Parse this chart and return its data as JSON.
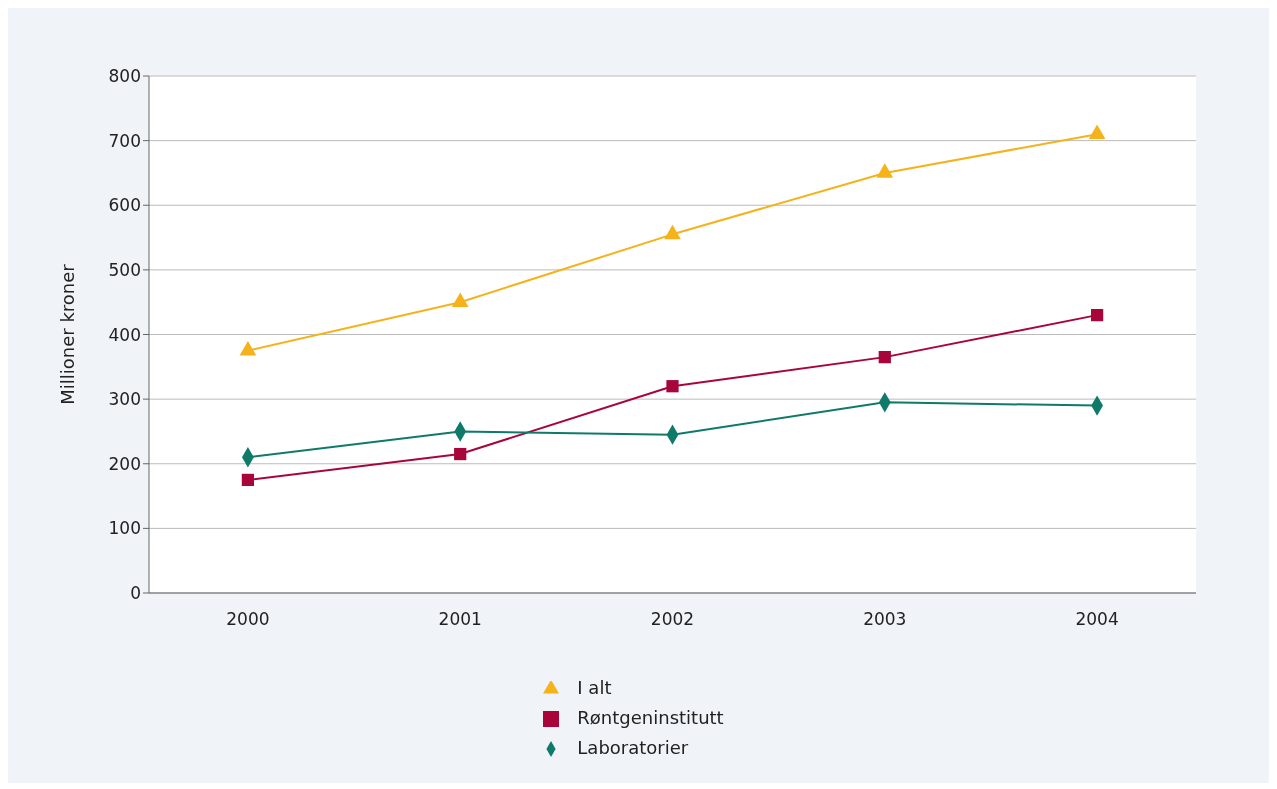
{
  "chart_data": {
    "type": "line",
    "ylabel": "Millioner kroner",
    "categories": [
      "2000",
      "2001",
      "2002",
      "2003",
      "2004"
    ],
    "series": [
      {
        "name": "I alt",
        "color": "#f5b21b",
        "marker": "triangle",
        "values": [
          375,
          450,
          555,
          650,
          710
        ]
      },
      {
        "name": "Røntgeninstitutt",
        "color": "#a8063a",
        "marker": "square",
        "values": [
          175,
          215,
          320,
          365,
          430
        ]
      },
      {
        "name": "Laboratorier",
        "color": "#0f7a6a",
        "marker": "diamond",
        "values": [
          210,
          250,
          245,
          295,
          290
        ]
      }
    ],
    "ylim": [
      0,
      800
    ],
    "yticks": [
      0,
      100,
      200,
      300,
      400,
      500,
      600,
      700,
      800
    ],
    "grid": "y",
    "legend": "bottom",
    "line_style": "solid"
  }
}
